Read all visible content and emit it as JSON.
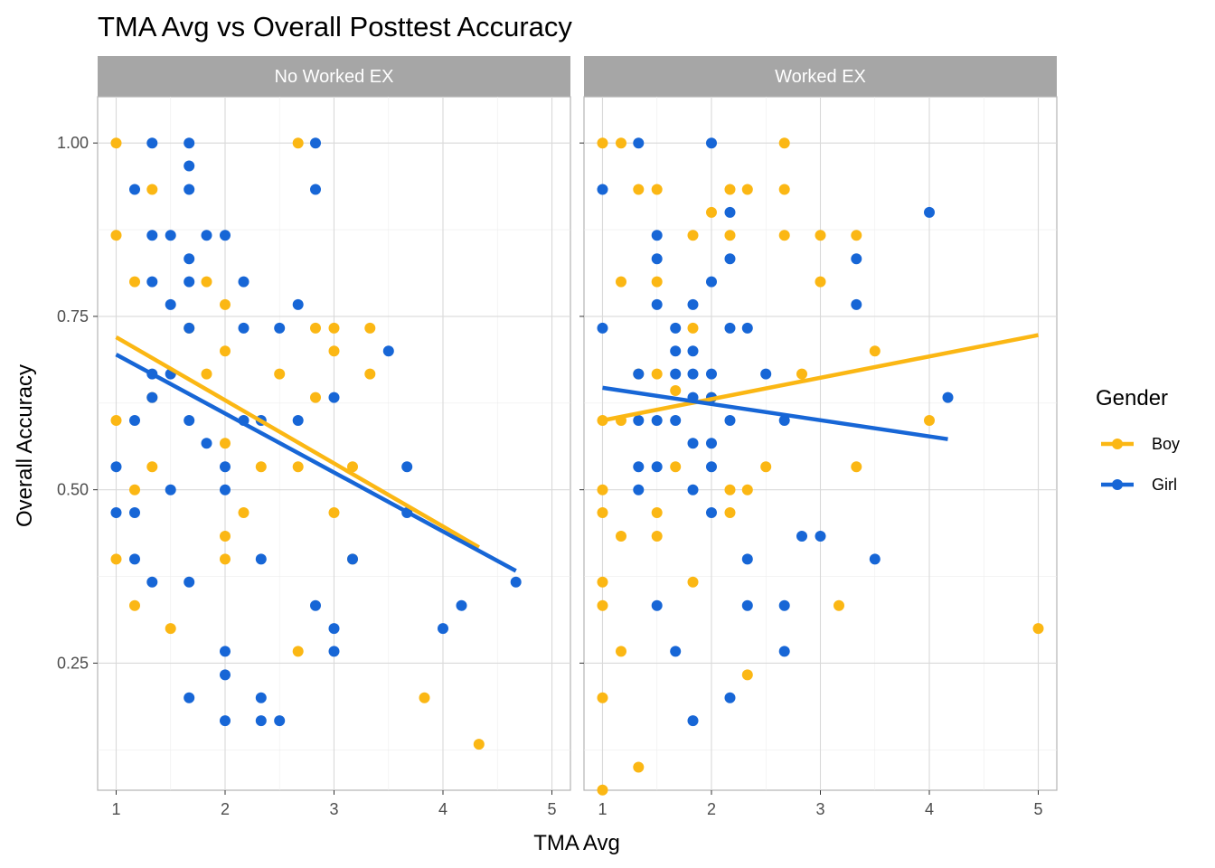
{
  "colors": {
    "Boy": "#fbb714",
    "Girl": "#1766d6",
    "strip": "#a6a6a6"
  },
  "chart_data": {
    "type": "scatter",
    "title": "TMA Avg vs Overall Posttest Accuracy",
    "xlabel": "TMA Avg",
    "ylabel": "Overall Accuracy",
    "xlim": [
      0.83,
      5.17
    ],
    "ylim": [
      0.0667,
      1.0667
    ],
    "x_ticks": [
      1,
      2,
      3,
      4,
      5
    ],
    "x_tick_labels": [
      "1",
      "2",
      "3",
      "4",
      "5"
    ],
    "y_ticks": [
      0.25,
      0.5,
      0.75,
      1.0
    ],
    "y_tick_labels": [
      "0.25",
      "0.50",
      "0.75",
      "1.00"
    ],
    "grid": true,
    "legend": {
      "title": "Gender",
      "position": "right",
      "entries": [
        "Boy",
        "Girl"
      ]
    },
    "facets": [
      {
        "label": "No Worked EX",
        "series": [
          {
            "name": "Boy",
            "points": [
              [
                1,
                1.0
              ],
              [
                1,
                0.867
              ],
              [
                1,
                0.6
              ],
              [
                1,
                0.4
              ],
              [
                1.33,
                0.933
              ],
              [
                1.17,
                0.8
              ],
              [
                1.17,
                0.5
              ],
              [
                1.17,
                0.333
              ],
              [
                1.33,
                0.633
              ],
              [
                1.33,
                0.533
              ],
              [
                1.5,
                0.3
              ],
              [
                1.67,
                0.733
              ],
              [
                1.83,
                0.8
              ],
              [
                1.83,
                0.667
              ],
              [
                2,
                0.767
              ],
              [
                2,
                0.7
              ],
              [
                2,
                0.567
              ],
              [
                2,
                0.433
              ],
              [
                2,
                0.4
              ],
              [
                2.17,
                0.467
              ],
              [
                2.33,
                0.533
              ],
              [
                2.5,
                0.667
              ],
              [
                2.67,
                1.0
              ],
              [
                2.67,
                0.533
              ],
              [
                2.67,
                0.267
              ],
              [
                2.83,
                0.733
              ],
              [
                2.83,
                0.633
              ],
              [
                3,
                0.733
              ],
              [
                3,
                0.7
              ],
              [
                3,
                0.467
              ],
              [
                3.17,
                0.533
              ],
              [
                3.17,
                0.4
              ],
              [
                3.33,
                0.733
              ],
              [
                3.33,
                0.667
              ],
              [
                3.83,
                0.2
              ],
              [
                4.33,
                0.133
              ]
            ],
            "trend": {
              "x": [
                1,
                4.33
              ],
              "y": [
                0.72,
                0.417
              ]
            }
          },
          {
            "name": "Girl",
            "points": [
              [
                1,
                0.533
              ],
              [
                1,
                0.467
              ],
              [
                1.17,
                0.933
              ],
              [
                1.17,
                0.6
              ],
              [
                1.17,
                0.467
              ],
              [
                1.17,
                0.4
              ],
              [
                1.33,
                1.0
              ],
              [
                1.33,
                0.867
              ],
              [
                1.33,
                0.8
              ],
              [
                1.33,
                0.667
              ],
              [
                1.33,
                0.633
              ],
              [
                1.33,
                0.367
              ],
              [
                1.5,
                0.867
              ],
              [
                1.5,
                0.767
              ],
              [
                1.5,
                0.667
              ],
              [
                1.5,
                0.5
              ],
              [
                1.67,
                1.0
              ],
              [
                1.67,
                0.967
              ],
              [
                1.67,
                0.933
              ],
              [
                1.67,
                0.833
              ],
              [
                1.67,
                0.8
              ],
              [
                1.67,
                0.733
              ],
              [
                1.67,
                0.6
              ],
              [
                1.67,
                0.367
              ],
              [
                1.67,
                0.2
              ],
              [
                1.83,
                0.867
              ],
              [
                1.83,
                0.567
              ],
              [
                2,
                0.867
              ],
              [
                2,
                0.533
              ],
              [
                2,
                0.5
              ],
              [
                2,
                0.267
              ],
              [
                2,
                0.233
              ],
              [
                2,
                0.167
              ],
              [
                2.17,
                0.8
              ],
              [
                2.17,
                0.733
              ],
              [
                2.17,
                0.6
              ],
              [
                2.33,
                0.6
              ],
              [
                2.33,
                0.4
              ],
              [
                2.33,
                0.2
              ],
              [
                2.33,
                0.167
              ],
              [
                2.5,
                0.733
              ],
              [
                2.5,
                0.167
              ],
              [
                2.67,
                0.767
              ],
              [
                2.67,
                0.6
              ],
              [
                2.83,
                1.0
              ],
              [
                2.83,
                0.933
              ],
              [
                2.83,
                0.333
              ],
              [
                3,
                0.633
              ],
              [
                3,
                0.3
              ],
              [
                3,
                0.267
              ],
              [
                3.17,
                0.4
              ],
              [
                3.5,
                0.7
              ],
              [
                3.67,
                0.533
              ],
              [
                3.67,
                0.467
              ],
              [
                4,
                0.3
              ],
              [
                4.17,
                0.333
              ],
              [
                4.67,
                0.367
              ]
            ],
            "trend": {
              "x": [
                1,
                4.67
              ],
              "y": [
                0.695,
                0.383
              ]
            }
          }
        ]
      },
      {
        "label": "Worked EX",
        "series": [
          {
            "name": "Boy",
            "points": [
              [
                1,
                1.0
              ],
              [
                1,
                0.6
              ],
              [
                1,
                0.5
              ],
              [
                1,
                0.467
              ],
              [
                1,
                0.367
              ],
              [
                1,
                0.333
              ],
              [
                1,
                0.2
              ],
              [
                1,
                0.067
              ],
              [
                1.17,
                1.0
              ],
              [
                1.17,
                0.8
              ],
              [
                1.17,
                0.6
              ],
              [
                1.17,
                0.433
              ],
              [
                1.17,
                0.267
              ],
              [
                1.33,
                0.933
              ],
              [
                1.33,
                0.667
              ],
              [
                1.33,
                0.1
              ],
              [
                1.5,
                0.933
              ],
              [
                1.5,
                0.8
              ],
              [
                1.5,
                0.667
              ],
              [
                1.5,
                0.467
              ],
              [
                1.5,
                0.433
              ],
              [
                1.67,
                0.643
              ],
              [
                1.67,
                0.533
              ],
              [
                1.83,
                0.867
              ],
              [
                1.83,
                0.733
              ],
              [
                1.83,
                0.367
              ],
              [
                2,
                0.9
              ],
              [
                2,
                0.633
              ],
              [
                2.17,
                0.933
              ],
              [
                2.17,
                0.867
              ],
              [
                2.17,
                0.5
              ],
              [
                2.17,
                0.467
              ],
              [
                2.33,
                0.933
              ],
              [
                2.33,
                0.5
              ],
              [
                2.33,
                0.233
              ],
              [
                2.5,
                0.533
              ],
              [
                2.67,
                1.0
              ],
              [
                2.67,
                0.933
              ],
              [
                2.67,
                0.867
              ],
              [
                2.83,
                0.667
              ],
              [
                3,
                0.867
              ],
              [
                3,
                0.8
              ],
              [
                3.17,
                0.333
              ],
              [
                3.33,
                0.867
              ],
              [
                3.33,
                0.533
              ],
              [
                3.5,
                0.7
              ],
              [
                4,
                0.6
              ],
              [
                5,
                0.3
              ]
            ],
            "trend": {
              "x": [
                1,
                5
              ],
              "y": [
                0.6,
                0.723
              ]
            }
          },
          {
            "name": "Girl",
            "points": [
              [
                1,
                0.933
              ],
              [
                1,
                0.733
              ],
              [
                1.33,
                1.0
              ],
              [
                1.33,
                0.667
              ],
              [
                1.33,
                0.6
              ],
              [
                1.33,
                0.533
              ],
              [
                1.33,
                0.5
              ],
              [
                1.5,
                0.867
              ],
              [
                1.5,
                0.833
              ],
              [
                1.5,
                0.767
              ],
              [
                1.5,
                0.6
              ],
              [
                1.5,
                0.533
              ],
              [
                1.5,
                0.333
              ],
              [
                1.67,
                0.733
              ],
              [
                1.67,
                0.7
              ],
              [
                1.67,
                0.667
              ],
              [
                1.67,
                0.6
              ],
              [
                1.67,
                0.267
              ],
              [
                1.83,
                0.767
              ],
              [
                1.83,
                0.7
              ],
              [
                1.83,
                0.667
              ],
              [
                1.83,
                0.633
              ],
              [
                1.83,
                0.567
              ],
              [
                1.83,
                0.5
              ],
              [
                1.83,
                0.167
              ],
              [
                2,
                1.0
              ],
              [
                2,
                0.8
              ],
              [
                2,
                0.667
              ],
              [
                2,
                0.633
              ],
              [
                2,
                0.567
              ],
              [
                2,
                0.533
              ],
              [
                2,
                0.467
              ],
              [
                2.17,
                0.9
              ],
              [
                2.17,
                0.833
              ],
              [
                2.17,
                0.733
              ],
              [
                2.17,
                0.6
              ],
              [
                2.17,
                0.2
              ],
              [
                2.33,
                0.733
              ],
              [
                2.33,
                0.4
              ],
              [
                2.33,
                0.333
              ],
              [
                2.5,
                0.667
              ],
              [
                2.67,
                0.6
              ],
              [
                2.67,
                0.333
              ],
              [
                2.67,
                0.267
              ],
              [
                2.83,
                0.433
              ],
              [
                3,
                0.433
              ],
              [
                3.33,
                0.833
              ],
              [
                3.33,
                0.767
              ],
              [
                3.5,
                0.4
              ],
              [
                4,
                0.9
              ],
              [
                4.17,
                0.633
              ]
            ],
            "trend": {
              "x": [
                1,
                4.17
              ],
              "y": [
                0.647,
                0.573
              ]
            }
          }
        ]
      }
    ]
  }
}
